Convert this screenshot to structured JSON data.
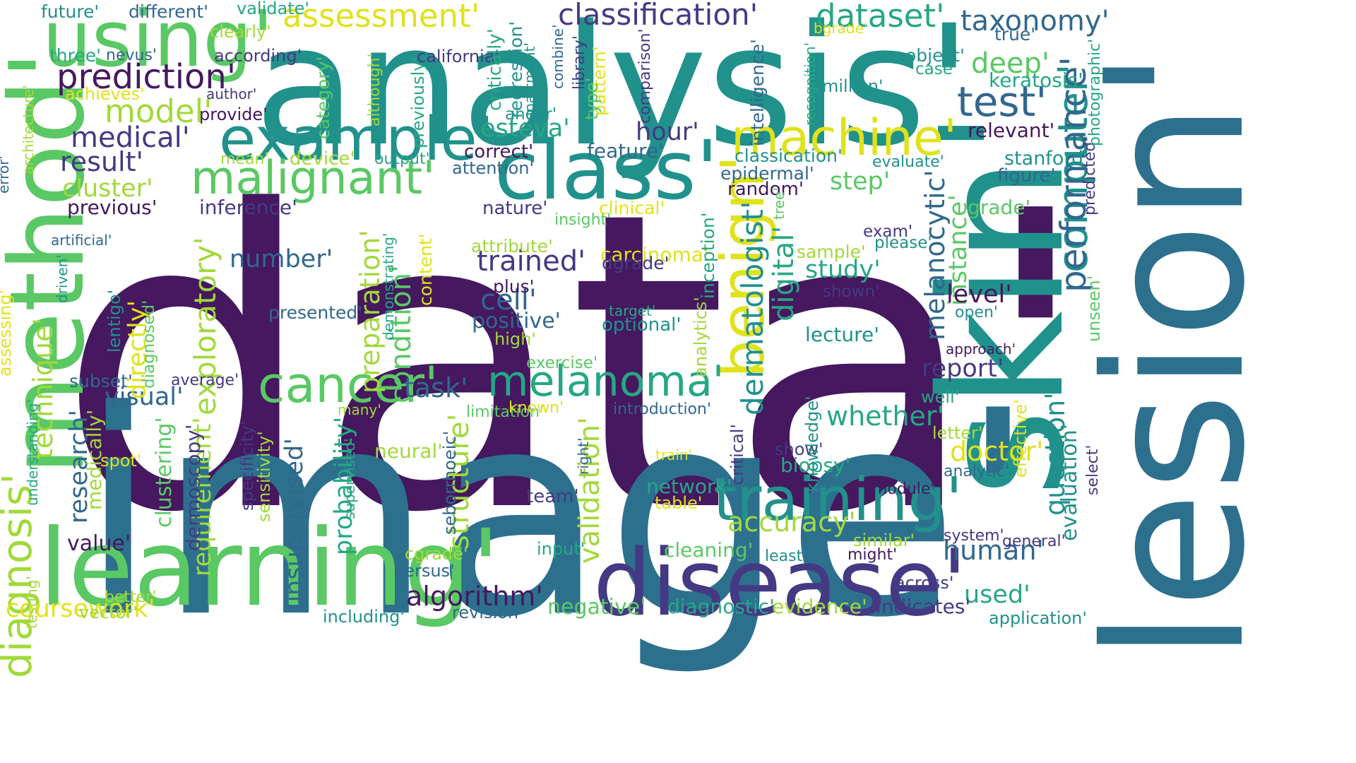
{
  "palette": {
    "dark_purple": "#45185f",
    "indigo": "#443a83",
    "slate_blue": "#31678e",
    "teal": "#21918c",
    "green_teal": "#26a784",
    "green": "#5ac864",
    "lime": "#a2d93a",
    "yellow": "#e0e21b"
  },
  "words": [
    {
      "text": "data'",
      "color": "#45185f"
    },
    {
      "text": "image'",
      "color": "#2d708e"
    },
    {
      "text": "analysis'",
      "color": "#21918c"
    },
    {
      "text": "lesion'",
      "color": "#2d708e"
    },
    {
      "text": "skin'",
      "color": "#21918c"
    },
    {
      "text": "method'",
      "color": "#5ac864"
    },
    {
      "text": "using'",
      "color": "#5ac864"
    },
    {
      "text": "learning'",
      "color": "#5ac864"
    },
    {
      "text": "disease'",
      "color": "#443a83"
    },
    {
      "text": "example'",
      "color": "#21918c"
    },
    {
      "text": "class'",
      "color": "#21918c"
    },
    {
      "text": "training'",
      "color": "#21918c"
    },
    {
      "text": "benign'",
      "color": "#e0e21b"
    },
    {
      "text": "machine'",
      "color": "#e0e21b"
    },
    {
      "text": "malignant'",
      "color": "#5ac864"
    },
    {
      "text": "cancer'",
      "color": "#5ac864"
    },
    {
      "text": "melanoma'",
      "color": "#26a784"
    },
    {
      "text": "diagnosis'",
      "color": "#a2d93a"
    },
    {
      "text": "computer'",
      "color": "#21918c"
    },
    {
      "text": "test'",
      "color": "#31678e"
    },
    {
      "text": "prediction'",
      "color": "#45185f"
    },
    {
      "text": "classification'",
      "color": "#443a83"
    },
    {
      "text": "assessment'",
      "color": "#e0e21b"
    },
    {
      "text": "dataset'",
      "color": "#26a784"
    },
    {
      "text": "taxonomy'",
      "color": "#31678e"
    },
    {
      "text": "performance'",
      "color": "#31678e"
    },
    {
      "text": "deep'",
      "color": "#5ac864"
    },
    {
      "text": "model'",
      "color": "#a2d93a"
    },
    {
      "text": "medical'",
      "color": "#443a83"
    },
    {
      "text": "result'",
      "color": "#443a83"
    },
    {
      "text": "cluster'",
      "color": "#a2d93a"
    },
    {
      "text": "esteva'",
      "color": "#26a784"
    },
    {
      "text": "hour'",
      "color": "#443a83"
    },
    {
      "text": "step'",
      "color": "#5ac864"
    },
    {
      "text": "melanocytic'",
      "color": "#31678e"
    },
    {
      "text": "instance'",
      "color": "#5ac864"
    },
    {
      "text": "dermatologist'",
      "color": "#21918c"
    },
    {
      "text": "digital'",
      "color": "#26a784"
    },
    {
      "text": "study'",
      "color": "#26a784"
    },
    {
      "text": "level'",
      "color": "#45185f"
    },
    {
      "text": "trained'",
      "color": "#443a83"
    },
    {
      "text": "number'",
      "color": "#31678e"
    },
    {
      "text": "cell'",
      "color": "#31678e"
    },
    {
      "text": "positive'",
      "color": "#31678e"
    },
    {
      "text": "exploratory'",
      "color": "#a2d93a"
    },
    {
      "text": "preparation'",
      "color": "#a2d93a"
    },
    {
      "text": "condition'",
      "color": "#5ac864"
    },
    {
      "text": "task'",
      "color": "#31678e"
    },
    {
      "text": "visual'",
      "color": "#31678e"
    },
    {
      "text": "technique'",
      "color": "#a2d93a"
    },
    {
      "text": "research'",
      "color": "#31678e"
    },
    {
      "text": "report'",
      "color": "#443a83"
    },
    {
      "text": "whether'",
      "color": "#26a784"
    },
    {
      "text": "accuracy'",
      "color": "#a2d93a"
    },
    {
      "text": "human'",
      "color": "#31678e"
    },
    {
      "text": "doctor'",
      "color": "#e0e21b"
    },
    {
      "text": "biopsy'",
      "color": "#26a784"
    },
    {
      "text": "question'",
      "color": "#21918c"
    },
    {
      "text": "evaluation'",
      "color": "#21918c"
    },
    {
      "text": "used'",
      "color": "#26a784"
    },
    {
      "text": "algorithm'",
      "color": "#45185f"
    },
    {
      "text": "coursework'",
      "color": "#e0e21b"
    },
    {
      "text": "value'",
      "color": "#45185f"
    },
    {
      "text": "validation'",
      "color": "#a2d93a"
    },
    {
      "text": "structure'",
      "color": "#a2d93a"
    },
    {
      "text": "probability'",
      "color": "#26a784"
    },
    {
      "text": "unsupervised'",
      "color": "#31678e"
    },
    {
      "text": "requirement'",
      "color": "#a2d93a"
    },
    {
      "text": "clustering'",
      "color": "#5ac864"
    },
    {
      "text": "negative'",
      "color": "#5ac864"
    },
    {
      "text": "diagnostic'",
      "color": "#26a784"
    },
    {
      "text": "evidence'",
      "color": "#a2d93a"
    },
    {
      "text": "indicates'",
      "color": "#443a83"
    },
    {
      "text": "cleaning'",
      "color": "#5ac864"
    },
    {
      "text": "network'",
      "color": "#26a784"
    },
    {
      "text": "neural'",
      "color": "#a2d93a"
    },
    {
      "text": "team'",
      "color": "#443a83"
    },
    {
      "text": "previous'",
      "color": "#45185f"
    },
    {
      "text": "inference'",
      "color": "#443a83"
    },
    {
      "text": "nature'",
      "color": "#443a83"
    },
    {
      "text": "clinical'",
      "color": "#e0e21b"
    },
    {
      "text": "attribute'",
      "color": "#a2d93a"
    },
    {
      "text": "carcinoma'",
      "color": "#e0e21b"
    },
    {
      "text": "plus'",
      "color": "#45185f"
    },
    {
      "text": "correct'",
      "color": "#45185f"
    },
    {
      "text": "feature'",
      "color": "#31678e"
    },
    {
      "text": "classication'",
      "color": "#21918c"
    },
    {
      "text": "epidermal'",
      "color": "#31678e"
    },
    {
      "text": "random'",
      "color": "#45185f"
    },
    {
      "text": "grade'",
      "color": "#5ac864"
    },
    {
      "text": "stanford'",
      "color": "#21918c"
    },
    {
      "text": "figure'",
      "color": "#31678e"
    },
    {
      "text": "relevant'",
      "color": "#45185f"
    },
    {
      "text": "keratosis'",
      "color": "#26a784"
    },
    {
      "text": "true'",
      "color": "#31678e"
    },
    {
      "text": "object'",
      "color": "#21918c"
    },
    {
      "text": "case'",
      "color": "#26a784"
    },
    {
      "text": "million'",
      "color": "#21918c"
    },
    {
      "text": "three'",
      "color": "#26a784"
    },
    {
      "text": "nevus'",
      "color": "#31678e"
    },
    {
      "text": "achieves'",
      "color": "#e0e21b"
    },
    {
      "text": "according'",
      "color": "#443a83"
    },
    {
      "text": "california'",
      "color": "#443a83"
    },
    {
      "text": "author'",
      "color": "#443a83"
    },
    {
      "text": "provide'",
      "color": "#45185f"
    },
    {
      "text": "future'",
      "color": "#21918c"
    },
    {
      "text": "different'",
      "color": "#31678e"
    },
    {
      "text": "validate'",
      "color": "#26a784"
    },
    {
      "text": "clearly'",
      "color": "#a2d93a"
    },
    {
      "text": "mean'",
      "color": "#a2d93a"
    },
    {
      "text": "device'",
      "color": "#a2d93a"
    },
    {
      "text": "output'",
      "color": "#26a784"
    },
    {
      "text": "attention'",
      "color": "#31678e"
    },
    {
      "text": "andor'",
      "color": "#21918c"
    },
    {
      "text": "evaluate'",
      "color": "#21918c"
    },
    {
      "text": "sample'",
      "color": "#a2d93a"
    },
    {
      "text": "exam'",
      "color": "#443a83"
    },
    {
      "text": "please'",
      "color": "#21918c"
    },
    {
      "text": "shown'",
      "color": "#443a83"
    },
    {
      "text": "lecture'",
      "color": "#21918c"
    },
    {
      "text": "presented'",
      "color": "#31678e"
    },
    {
      "text": "target'",
      "color": "#26a784"
    },
    {
      "text": "optional'",
      "color": "#21918c"
    },
    {
      "text": "dgrade'",
      "color": "#443a83"
    },
    {
      "text": "insight'",
      "color": "#5ac864"
    },
    {
      "text": "high'",
      "color": "#a2d93a"
    },
    {
      "text": "exercise'",
      "color": "#5ac864"
    },
    {
      "text": "subset'",
      "color": "#31678e"
    },
    {
      "text": "average'",
      "color": "#443a83"
    },
    {
      "text": "spot'",
      "color": "#e0e21b"
    },
    {
      "text": "many'",
      "color": "#a2d93a"
    },
    {
      "text": "limitation'",
      "color": "#5ac864"
    },
    {
      "text": "known'",
      "color": "#e0e21b"
    },
    {
      "text": "introduction'",
      "color": "#31678e"
    },
    {
      "text": "train'",
      "color": "#e0e21b"
    },
    {
      "text": "table'",
      "color": "#e0e21b"
    },
    {
      "text": "input'",
      "color": "#26a784"
    },
    {
      "text": "least'",
      "color": "#21918c"
    },
    {
      "text": "cgrade'",
      "color": "#a2d93a"
    },
    {
      "text": "versus'",
      "color": "#31678e"
    },
    {
      "text": "testing'",
      "color": "#a2d93a"
    },
    {
      "text": "better'",
      "color": "#a2d93a"
    },
    {
      "text": "vector'",
      "color": "#a2d93a"
    },
    {
      "text": "including'",
      "color": "#21918c"
    },
    {
      "text": "revision'",
      "color": "#31678e"
    },
    {
      "text": "application'",
      "color": "#21918c"
    },
    {
      "text": "across'",
      "color": "#443a83"
    },
    {
      "text": "might'",
      "color": "#45185f"
    },
    {
      "text": "similar'",
      "color": "#a2d93a"
    },
    {
      "text": "system'",
      "color": "#443a83"
    },
    {
      "text": "general'",
      "color": "#443a83"
    },
    {
      "text": "module'",
      "color": "#45185f"
    },
    {
      "text": "analytic'",
      "color": "#31678e"
    },
    {
      "text": "letter'",
      "color": "#a2d93a"
    },
    {
      "text": "well'",
      "color": "#26a784"
    },
    {
      "text": "show'",
      "color": "#443a83"
    },
    {
      "text": "approach'",
      "color": "#45185f"
    },
    {
      "text": "open'",
      "color": "#21918c"
    },
    {
      "text": "bgrade'",
      "color": "#e0e21b"
    },
    {
      "text": "error'",
      "color": "#31678e"
    },
    {
      "text": "architecture'",
      "color": "#a2d93a"
    },
    {
      "text": "assessing'",
      "color": "#e0e21b"
    },
    {
      "text": "artificial'",
      "color": "#31678e"
    },
    {
      "text": "driven'",
      "color": "#21918c"
    },
    {
      "text": "understanding'",
      "color": "#26a784"
    },
    {
      "text": "lentigo'",
      "color": "#21918c"
    },
    {
      "text": "directly'",
      "color": "#e0e21b"
    },
    {
      "text": "diagnosed'",
      "color": "#5ac864"
    },
    {
      "text": "medically'",
      "color": "#a2d93a"
    },
    {
      "text": "dermoscopy'",
      "color": "#443a83"
    },
    {
      "text": "specificity'",
      "color": "#443a83"
    },
    {
      "text": "sensitivity'",
      "color": "#a2d93a"
    },
    {
      "text": "seborrhoeic'",
      "color": "#31678e"
    },
    {
      "text": "supervised'",
      "color": "#26a784"
    },
    {
      "text": "right'",
      "color": "#31678e"
    },
    {
      "text": "critical'",
      "color": "#443a83"
    },
    {
      "text": "knowledge'",
      "color": "#21918c"
    },
    {
      "text": "effective'",
      "color": "#e0e21b"
    },
    {
      "text": "select'",
      "color": "#443a83"
    },
    {
      "text": "unseen'",
      "color": "#5ac864"
    },
    {
      "text": "predicted'",
      "color": "#443a83"
    },
    {
      "text": "photographic'",
      "color": "#26a784"
    },
    {
      "text": "intelligence'",
      "color": "#31678e"
    },
    {
      "text": "comparison'",
      "color": "#443a83"
    },
    {
      "text": "recognition'",
      "color": "#26a784"
    },
    {
      "text": "combine'",
      "color": "#31678e"
    },
    {
      "text": "library'",
      "color": "#443a83"
    },
    {
      "text": "pattern'",
      "color": "#e0e21b"
    },
    {
      "text": "type'",
      "color": "#5ac864"
    },
    {
      "text": "critically'",
      "color": "#26a784"
    },
    {
      "text": "regression'",
      "color": "#21918c"
    },
    {
      "text": "department'",
      "color": "#21918c"
    },
    {
      "text": "previously'",
      "color": "#26a784"
    },
    {
      "text": "although'",
      "color": "#a2d93a"
    },
    {
      "text": "category'",
      "color": "#5ac864"
    },
    {
      "text": "demonstrating'",
      "color": "#26a784"
    },
    {
      "text": "content'",
      "color": "#e0e21b"
    },
    {
      "text": "inception'",
      "color": "#26a784"
    },
    {
      "text": "analytics'",
      "color": "#a2d93a"
    },
    {
      "text": "tree'",
      "color": "#5ac864"
    }
  ]
}
